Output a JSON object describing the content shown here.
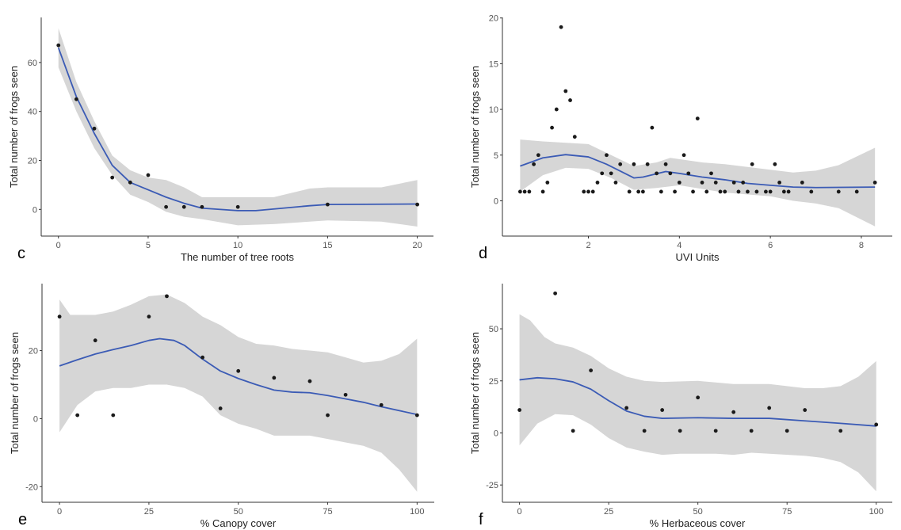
{
  "colors": {
    "smooth_line": "#3B5BB5",
    "confidence_band": "#D6D6D6",
    "points": "#1a1a1a",
    "axis": "#333333"
  },
  "chart_data": [
    {
      "panel_label": "c",
      "type": "scatter",
      "xlabel": "The number of tree roots",
      "ylabel": "Total number of frogs seen",
      "xlim": [
        -0.96,
        20.9
      ],
      "ylim": [
        -10.9,
        78.4
      ],
      "xticks": [
        0,
        5,
        10,
        15,
        20
      ],
      "yticks": [
        0,
        20,
        40,
        60
      ],
      "grid": false,
      "points": [
        [
          0,
          67
        ],
        [
          1,
          45
        ],
        [
          2,
          33
        ],
        [
          3,
          13
        ],
        [
          4,
          11
        ],
        [
          5,
          14
        ],
        [
          6,
          1
        ],
        [
          7,
          1
        ],
        [
          8,
          1
        ],
        [
          10,
          1
        ],
        [
          15,
          2
        ],
        [
          20,
          2
        ]
      ],
      "smooth": [
        [
          0,
          66
        ],
        [
          1,
          46
        ],
        [
          2,
          31
        ],
        [
          3,
          18
        ],
        [
          4,
          11
        ],
        [
          5,
          8
        ],
        [
          6,
          5
        ],
        [
          7,
          2.5
        ],
        [
          8,
          0.5
        ],
        [
          10,
          -0.5
        ],
        [
          11,
          -0.5
        ],
        [
          14,
          1.5
        ],
        [
          15,
          2
        ],
        [
          20,
          2.2
        ]
      ],
      "band_upper": [
        [
          0,
          74
        ],
        [
          1,
          52
        ],
        [
          2,
          36
        ],
        [
          3,
          22
        ],
        [
          4,
          16
        ],
        [
          5,
          13
        ],
        [
          6,
          12
        ],
        [
          7,
          9
        ],
        [
          8,
          5
        ],
        [
          10,
          5
        ],
        [
          12,
          5
        ],
        [
          14,
          8.5
        ],
        [
          15,
          9
        ],
        [
          18,
          9
        ],
        [
          20,
          12
        ]
      ],
      "band_lower": [
        [
          0,
          58
        ],
        [
          1,
          40
        ],
        [
          2,
          25
        ],
        [
          3,
          14
        ],
        [
          4,
          6
        ],
        [
          5,
          3
        ],
        [
          6,
          -1
        ],
        [
          7,
          -3
        ],
        [
          8,
          -4
        ],
        [
          10,
          -6.5
        ],
        [
          12,
          -6
        ],
        [
          14,
          -5
        ],
        [
          15,
          -4.5
        ],
        [
          18,
          -5
        ],
        [
          20,
          -7
        ]
      ]
    },
    {
      "panel_label": "d",
      "type": "scatter",
      "xlabel": "UVI Units",
      "ylabel": "Total number of frogs seen",
      "xlim": [
        0.11,
        8.68
      ],
      "ylim": [
        -3.86,
        20.06
      ],
      "xticks": [
        2,
        4,
        6,
        8
      ],
      "yticks": [
        0,
        5,
        10,
        15,
        20
      ],
      "grid": false,
      "points": [
        [
          0.5,
          1
        ],
        [
          0.6,
          1
        ],
        [
          0.7,
          1
        ],
        [
          0.8,
          4
        ],
        [
          0.9,
          5
        ],
        [
          1.0,
          1
        ],
        [
          1.1,
          2
        ],
        [
          1.2,
          8
        ],
        [
          1.3,
          10
        ],
        [
          1.4,
          19
        ],
        [
          1.5,
          12
        ],
        [
          1.6,
          11
        ],
        [
          1.7,
          7
        ],
        [
          1.9,
          1
        ],
        [
          2.0,
          1
        ],
        [
          2.1,
          1
        ],
        [
          2.2,
          2
        ],
        [
          2.3,
          3
        ],
        [
          2.4,
          5
        ],
        [
          2.5,
          3
        ],
        [
          2.6,
          2
        ],
        [
          2.7,
          4
        ],
        [
          2.9,
          1
        ],
        [
          3.0,
          4
        ],
        [
          3.1,
          1
        ],
        [
          3.2,
          1
        ],
        [
          3.3,
          4
        ],
        [
          3.4,
          8
        ],
        [
          3.5,
          3
        ],
        [
          3.6,
          1
        ],
        [
          3.7,
          4
        ],
        [
          3.8,
          3
        ],
        [
          3.9,
          1
        ],
        [
          4.0,
          2
        ],
        [
          4.1,
          5
        ],
        [
          4.2,
          3
        ],
        [
          4.3,
          1
        ],
        [
          4.4,
          9
        ],
        [
          4.5,
          2
        ],
        [
          4.6,
          1
        ],
        [
          4.7,
          3
        ],
        [
          4.8,
          2
        ],
        [
          4.9,
          1
        ],
        [
          5.0,
          1
        ],
        [
          5.2,
          2
        ],
        [
          5.3,
          1
        ],
        [
          5.4,
          2
        ],
        [
          5.5,
          1
        ],
        [
          5.6,
          4
        ],
        [
          5.7,
          1
        ],
        [
          5.9,
          1
        ],
        [
          6.0,
          1
        ],
        [
          6.1,
          4
        ],
        [
          6.2,
          2
        ],
        [
          6.3,
          1
        ],
        [
          6.4,
          1
        ],
        [
          6.7,
          2
        ],
        [
          6.9,
          1
        ],
        [
          7.5,
          1
        ],
        [
          7.9,
          1
        ],
        [
          8.3,
          2
        ]
      ],
      "smooth": [
        [
          0.5,
          3.8
        ],
        [
          1,
          4.7
        ],
        [
          1.5,
          5.05
        ],
        [
          2,
          4.8
        ],
        [
          2.4,
          4.0
        ],
        [
          3,
          2.5
        ],
        [
          3.2,
          2.6
        ],
        [
          3.7,
          3.2
        ],
        [
          4,
          3.0
        ],
        [
          4.5,
          2.6
        ],
        [
          5,
          2.3
        ],
        [
          5.5,
          1.9
        ],
        [
          6,
          1.7
        ],
        [
          6.5,
          1.5
        ],
        [
          7,
          1.45
        ],
        [
          8.3,
          1.5
        ]
      ],
      "band_upper": [
        [
          0.5,
          6.7
        ],
        [
          1,
          6.5
        ],
        [
          2,
          6.2
        ],
        [
          2.5,
          5
        ],
        [
          3,
          3.8
        ],
        [
          3.5,
          4.2
        ],
        [
          3.8,
          4.7
        ],
        [
          4.5,
          4.2
        ],
        [
          5,
          4
        ],
        [
          6,
          3.4
        ],
        [
          6.5,
          3.1
        ],
        [
          7,
          3.3
        ],
        [
          7.5,
          3.9
        ],
        [
          8.3,
          5.8
        ]
      ],
      "band_lower": [
        [
          0.5,
          1
        ],
        [
          1,
          2.8
        ],
        [
          1.5,
          3.6
        ],
        [
          2,
          3.5
        ],
        [
          2.5,
          2.5
        ],
        [
          3,
          1.2
        ],
        [
          3.5,
          1.4
        ],
        [
          4,
          1.7
        ],
        [
          5,
          0.9
        ],
        [
          6,
          0.5
        ],
        [
          6.5,
          0
        ],
        [
          7,
          -0.3
        ],
        [
          7.5,
          -0.8
        ],
        [
          8.3,
          -2.8
        ]
      ]
    },
    {
      "panel_label": "e",
      "type": "scatter",
      "xlabel": "% Canopy cover",
      "ylabel": "Total number of frogs seen",
      "xlim": [
        -4.9,
        104.8
      ],
      "ylim": [
        -24.6,
        39.7
      ],
      "xticks": [
        0,
        25,
        50,
        75,
        100
      ],
      "yticks": [
        -20,
        0,
        20
      ],
      "grid": false,
      "points": [
        [
          0,
          30
        ],
        [
          5,
          1
        ],
        [
          10,
          23
        ],
        [
          15,
          1
        ],
        [
          25,
          30
        ],
        [
          30,
          36
        ],
        [
          40,
          18
        ],
        [
          45,
          3
        ],
        [
          50,
          14
        ],
        [
          60,
          12
        ],
        [
          70,
          11
        ],
        [
          75,
          1
        ],
        [
          80,
          7
        ],
        [
          90,
          4
        ],
        [
          100,
          1
        ]
      ],
      "smooth": [
        [
          0,
          15.5
        ],
        [
          5,
          17.3
        ],
        [
          10,
          19
        ],
        [
          15,
          20.3
        ],
        [
          20,
          21.5
        ],
        [
          25,
          23
        ],
        [
          28,
          23.5
        ],
        [
          32,
          23
        ],
        [
          35,
          21.5
        ],
        [
          40,
          17.5
        ],
        [
          45,
          14
        ],
        [
          50,
          11.8
        ],
        [
          55,
          10
        ],
        [
          60,
          8.4
        ],
        [
          65,
          7.8
        ],
        [
          70,
          7.6
        ],
        [
          75,
          6.8
        ],
        [
          80,
          5.8
        ],
        [
          85,
          4.8
        ],
        [
          90,
          3.5
        ],
        [
          100,
          1.2
        ]
      ],
      "band_upper": [
        [
          0,
          35
        ],
        [
          3,
          30.5
        ],
        [
          10,
          30.5
        ],
        [
          15,
          31.5
        ],
        [
          20,
          33.5
        ],
        [
          25,
          36
        ],
        [
          30,
          36.5
        ],
        [
          35,
          34
        ],
        [
          40,
          30
        ],
        [
          45,
          27.5
        ],
        [
          50,
          24
        ],
        [
          55,
          22
        ],
        [
          60,
          21.5
        ],
        [
          65,
          20.5
        ],
        [
          70,
          20
        ],
        [
          75,
          19.5
        ],
        [
          80,
          18
        ],
        [
          85,
          16.5
        ],
        [
          90,
          17
        ],
        [
          95,
          19
        ],
        [
          100,
          23.5
        ]
      ],
      "band_lower": [
        [
          0,
          -4
        ],
        [
          5,
          4
        ],
        [
          10,
          8
        ],
        [
          15,
          9
        ],
        [
          20,
          9
        ],
        [
          25,
          10
        ],
        [
          30,
          10
        ],
        [
          35,
          9
        ],
        [
          40,
          6.5
        ],
        [
          45,
          1
        ],
        [
          50,
          -1.5
        ],
        [
          55,
          -3
        ],
        [
          60,
          -5
        ],
        [
          65,
          -5
        ],
        [
          70,
          -5
        ],
        [
          75,
          -6
        ],
        [
          80,
          -7
        ],
        [
          85,
          -8
        ],
        [
          90,
          -10
        ],
        [
          95,
          -15
        ],
        [
          100,
          -21.5
        ]
      ]
    },
    {
      "panel_label": "f",
      "type": "scatter",
      "xlabel": "% Herbaceous cover",
      "ylabel": "Total number of frogs seen",
      "xlim": [
        -4.8,
        104.5
      ],
      "ylim": [
        -33.3,
        71.7
      ],
      "xticks": [
        0,
        25,
        50,
        75,
        100
      ],
      "yticks": [
        -25,
        0,
        25,
        50
      ],
      "grid": false,
      "points": [
        [
          0,
          11
        ],
        [
          10,
          67
        ],
        [
          15,
          1
        ],
        [
          20,
          30
        ],
        [
          30,
          12
        ],
        [
          35,
          1
        ],
        [
          40,
          11
        ],
        [
          45,
          1
        ],
        [
          50,
          17
        ],
        [
          55,
          1
        ],
        [
          60,
          10
        ],
        [
          65,
          1
        ],
        [
          70,
          12
        ],
        [
          75,
          1
        ],
        [
          80,
          11
        ],
        [
          90,
          1
        ],
        [
          100,
          4
        ]
      ],
      "smooth": [
        [
          0,
          25.5
        ],
        [
          5,
          26.5
        ],
        [
          10,
          26
        ],
        [
          15,
          24.5
        ],
        [
          20,
          21
        ],
        [
          25,
          15.5
        ],
        [
          30,
          10.5
        ],
        [
          35,
          8
        ],
        [
          40,
          7
        ],
        [
          50,
          7.3
        ],
        [
          60,
          7
        ],
        [
          70,
          7
        ],
        [
          80,
          5.8
        ],
        [
          90,
          4.6
        ],
        [
          100,
          3.3
        ]
      ],
      "band_upper": [
        [
          0,
          57
        ],
        [
          3,
          54
        ],
        [
          7,
          46
        ],
        [
          10,
          43
        ],
        [
          15,
          41
        ],
        [
          20,
          37
        ],
        [
          25,
          31
        ],
        [
          30,
          27
        ],
        [
          35,
          25
        ],
        [
          40,
          24.5
        ],
        [
          50,
          25
        ],
        [
          60,
          23.5
        ],
        [
          70,
          23.5
        ],
        [
          80,
          21.5
        ],
        [
          85,
          21.5
        ],
        [
          90,
          22.5
        ],
        [
          95,
          27
        ],
        [
          100,
          34.5
        ]
      ],
      "band_lower": [
        [
          0,
          -6
        ],
        [
          5,
          4.5
        ],
        [
          10,
          9
        ],
        [
          15,
          8.5
        ],
        [
          20,
          4
        ],
        [
          25,
          -2.5
        ],
        [
          30,
          -7
        ],
        [
          35,
          -9
        ],
        [
          40,
          -10.5
        ],
        [
          45,
          -10
        ],
        [
          50,
          -10
        ],
        [
          55,
          -10
        ],
        [
          60,
          -10.5
        ],
        [
          65,
          -9.5
        ],
        [
          70,
          -10
        ],
        [
          80,
          -11
        ],
        [
          85,
          -12
        ],
        [
          90,
          -14
        ],
        [
          95,
          -19
        ],
        [
          100,
          -28
        ]
      ]
    }
  ]
}
